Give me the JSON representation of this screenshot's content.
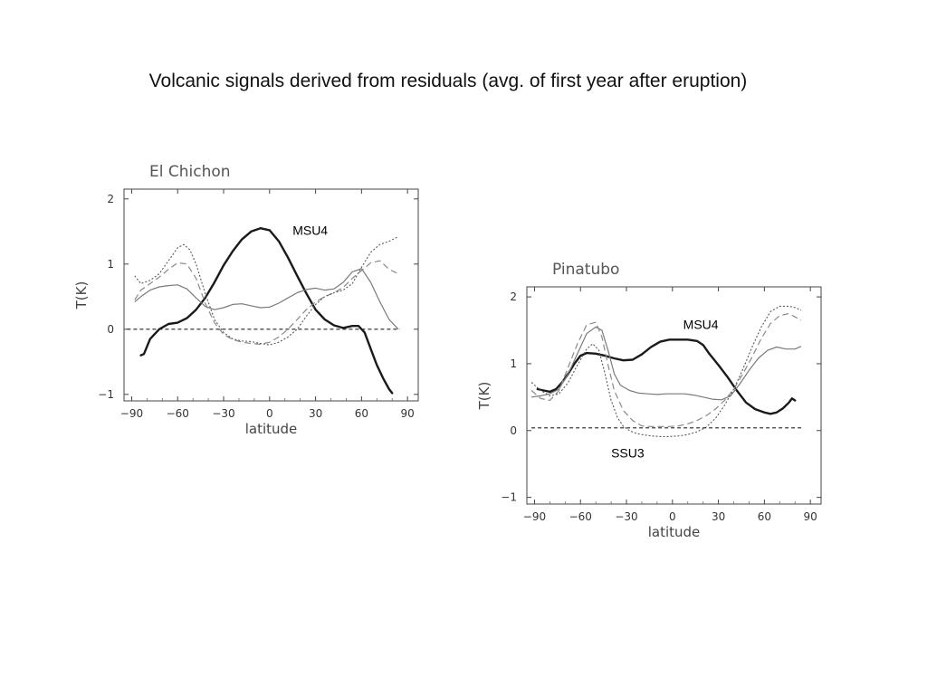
{
  "slide": {
    "title": "Volcanic signals derived from residuals  (avg. of first year after eruption)"
  },
  "chart_data": [
    {
      "type": "line",
      "title": "El Chichon",
      "xlabel": "latitude",
      "ylabel": "T(K)",
      "xlim": [
        -95,
        97
      ],
      "ylim": [
        -1.1,
        2.15
      ],
      "xticks": [
        -90,
        -60,
        -30,
        0,
        30,
        60,
        90
      ],
      "yticks": [
        -1,
        0,
        1,
        2
      ],
      "xtick_labels": [
        "−90",
        "−60",
        "−30",
        "0",
        "30",
        "60",
        "90"
      ],
      "ytick_labels": [
        "−1",
        "0",
        "1",
        "2"
      ],
      "annotations": [
        {
          "text": "MSU4",
          "x": 15,
          "y": 1.45
        }
      ],
      "series": [
        {
          "style": "thick",
          "x": [
            -84,
            -82,
            -78,
            -72,
            -66,
            -60,
            -54,
            -48,
            -42,
            -36,
            -30,
            -24,
            -18,
            -12,
            -6,
            0,
            6,
            12,
            18,
            24,
            30,
            36,
            42,
            48,
            54,
            58,
            62,
            66,
            70,
            74,
            78,
            80
          ],
          "y": [
            -0.4,
            -0.38,
            -0.15,
            0.0,
            0.08,
            0.1,
            0.17,
            0.3,
            0.48,
            0.72,
            0.98,
            1.2,
            1.38,
            1.5,
            1.55,
            1.52,
            1.35,
            1.1,
            0.82,
            0.55,
            0.3,
            0.15,
            0.06,
            0.02,
            0.05,
            0.05,
            -0.05,
            -0.3,
            -0.55,
            -0.75,
            -0.92,
            -0.98
          ]
        },
        {
          "style": "thin",
          "x": [
            -88,
            -84,
            -78,
            -72,
            -66,
            -60,
            -54,
            -48,
            -42,
            -36,
            -30,
            -24,
            -18,
            -12,
            -6,
            0,
            6,
            12,
            18,
            24,
            30,
            36,
            42,
            48,
            54,
            60,
            66,
            72,
            78,
            84
          ],
          "y": [
            0.42,
            0.5,
            0.6,
            0.65,
            0.67,
            0.68,
            0.62,
            0.48,
            0.35,
            0.3,
            0.33,
            0.38,
            0.39,
            0.36,
            0.33,
            0.34,
            0.4,
            0.48,
            0.56,
            0.61,
            0.63,
            0.6,
            0.62,
            0.72,
            0.88,
            0.93,
            0.72,
            0.42,
            0.15,
            0.0
          ]
        },
        {
          "style": "dashed",
          "x": [
            -88,
            -84,
            -78,
            -72,
            -66,
            -60,
            -54,
            -48,
            -42,
            -36,
            -30,
            -24,
            -18,
            -12,
            -6,
            0,
            6,
            12,
            18,
            24,
            30,
            36,
            42,
            48,
            54,
            60,
            66,
            72,
            78,
            84
          ],
          "y": [
            0.45,
            0.6,
            0.7,
            0.8,
            0.92,
            1.02,
            1.0,
            0.78,
            0.4,
            0.1,
            -0.08,
            -0.16,
            -0.2,
            -0.22,
            -0.23,
            -0.2,
            -0.12,
            0.0,
            0.15,
            0.3,
            0.42,
            0.5,
            0.56,
            0.64,
            0.78,
            0.9,
            1.02,
            1.05,
            0.92,
            0.85
          ]
        },
        {
          "style": "dotted",
          "x": [
            -88,
            -84,
            -78,
            -72,
            -66,
            -60,
            -56,
            -52,
            -48,
            -42,
            -36,
            -30,
            -24,
            -18,
            -12,
            -6,
            0,
            6,
            12,
            18,
            24,
            30,
            36,
            42,
            48,
            54,
            60,
            66,
            72,
            78,
            84
          ],
          "y": [
            0.82,
            0.7,
            0.75,
            0.85,
            1.05,
            1.25,
            1.3,
            1.22,
            1.0,
            0.55,
            0.15,
            -0.05,
            -0.15,
            -0.18,
            -0.19,
            -0.22,
            -0.24,
            -0.2,
            -0.12,
            0.0,
            0.2,
            0.38,
            0.5,
            0.56,
            0.6,
            0.7,
            0.95,
            1.18,
            1.3,
            1.35,
            1.42
          ]
        },
        {
          "style": "zero",
          "x": [
            -93,
            85
          ],
          "y": [
            0,
            0
          ]
        }
      ]
    },
    {
      "type": "line",
      "title": "Pinatubo",
      "xlabel": "latitude",
      "ylabel": "T(K)",
      "xlim": [
        -95,
        97
      ],
      "ylim": [
        -1.1,
        2.15
      ],
      "xticks": [
        -90,
        -60,
        -30,
        0,
        30,
        60,
        90
      ],
      "yticks": [
        -1,
        0,
        1,
        2
      ],
      "xtick_labels": [
        "−90",
        "−60",
        "−30",
        "0",
        "30",
        "60",
        "90"
      ],
      "ytick_labels": [
        "−1",
        "0",
        "1",
        "2"
      ],
      "annotations": [
        {
          "text": "MSU4",
          "x": 7,
          "y": 1.52
        },
        {
          "text": "SSU3",
          "x": -40,
          "y": -0.4
        }
      ],
      "series": [
        {
          "style": "thick",
          "x": [
            -88,
            -84,
            -80,
            -76,
            -72,
            -68,
            -64,
            -60,
            -56,
            -50,
            -44,
            -38,
            -32,
            -26,
            -20,
            -14,
            -8,
            -2,
            4,
            10,
            16,
            20,
            24,
            30,
            36,
            42,
            48,
            54,
            60,
            64,
            68,
            72,
            76,
            78,
            80
          ],
          "y": [
            0.62,
            0.6,
            0.58,
            0.62,
            0.72,
            0.85,
            1.0,
            1.12,
            1.16,
            1.15,
            1.12,
            1.08,
            1.05,
            1.06,
            1.14,
            1.25,
            1.33,
            1.36,
            1.36,
            1.36,
            1.34,
            1.28,
            1.15,
            0.98,
            0.8,
            0.6,
            0.42,
            0.32,
            0.27,
            0.25,
            0.27,
            0.33,
            0.42,
            0.48,
            0.45
          ]
        },
        {
          "style": "thin",
          "x": [
            -92,
            -86,
            -80,
            -74,
            -68,
            -62,
            -56,
            -50,
            -46,
            -42,
            -38,
            -34,
            -28,
            -22,
            -16,
            -10,
            -4,
            2,
            8,
            14,
            20,
            26,
            32,
            38,
            44,
            50,
            56,
            62,
            68,
            74,
            80,
            84
          ],
          "y": [
            0.5,
            0.52,
            0.55,
            0.62,
            0.85,
            1.15,
            1.45,
            1.55,
            1.5,
            1.2,
            0.85,
            0.68,
            0.6,
            0.56,
            0.55,
            0.54,
            0.55,
            0.55,
            0.55,
            0.53,
            0.5,
            0.47,
            0.46,
            0.52,
            0.7,
            0.9,
            1.08,
            1.2,
            1.25,
            1.22,
            1.22,
            1.26
          ]
        },
        {
          "style": "dashed",
          "x": [
            -92,
            -86,
            -80,
            -74,
            -68,
            -62,
            -56,
            -50,
            -46,
            -42,
            -38,
            -32,
            -26,
            -20,
            -14,
            -8,
            -2,
            4,
            10,
            16,
            22,
            28,
            34,
            40,
            46,
            52,
            58,
            64,
            70,
            76,
            80,
            84
          ],
          "y": [
            0.6,
            0.48,
            0.45,
            0.6,
            0.95,
            1.3,
            1.58,
            1.62,
            1.4,
            0.98,
            0.6,
            0.3,
            0.15,
            0.07,
            0.06,
            0.06,
            0.06,
            0.07,
            0.1,
            0.15,
            0.22,
            0.32,
            0.45,
            0.62,
            0.85,
            1.1,
            1.38,
            1.6,
            1.72,
            1.75,
            1.7,
            1.65
          ]
        },
        {
          "style": "dotted",
          "x": [
            -92,
            -86,
            -80,
            -74,
            -68,
            -62,
            -56,
            -52,
            -48,
            -44,
            -40,
            -36,
            -32,
            -28,
            -24,
            -20,
            -14,
            -8,
            -2,
            4,
            10,
            16,
            22,
            28,
            34,
            40,
            46,
            52,
            58,
            64,
            70,
            76,
            80,
            84
          ],
          "y": [
            0.72,
            0.6,
            0.52,
            0.55,
            0.72,
            0.98,
            1.22,
            1.3,
            1.2,
            0.85,
            0.45,
            0.2,
            0.06,
            0.0,
            -0.04,
            -0.06,
            -0.08,
            -0.09,
            -0.09,
            -0.08,
            -0.06,
            -0.02,
            0.05,
            0.18,
            0.38,
            0.62,
            0.92,
            1.25,
            1.55,
            1.78,
            1.86,
            1.86,
            1.84,
            1.8
          ]
        },
        {
          "style": "zero",
          "x": [
            -92,
            85
          ],
          "y": [
            0.04,
            0.04
          ]
        }
      ]
    }
  ]
}
